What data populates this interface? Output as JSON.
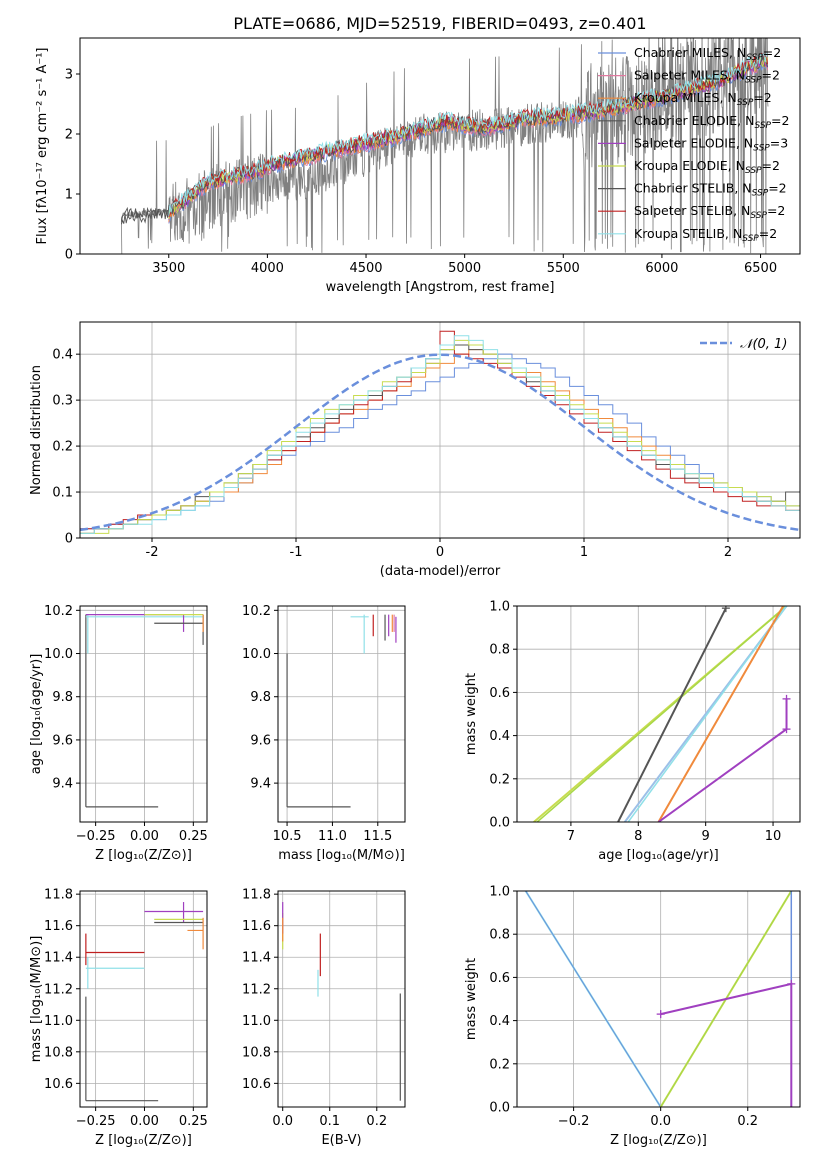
{
  "figure": {
    "title": "PLATE=0686, MJD=52519, FIBERID=0493, z=0.401"
  },
  "colors": {
    "chabrier_miles": "#6a8fdc",
    "salpeter_miles": "#e07aa0",
    "kroupa_miles": "#f08a3c",
    "chabrier_elodie": "#555555",
    "salpeter_elodie": "#a040c0",
    "kroupa_elodie": "#c8dc50",
    "chabrier_stelib": "#555555",
    "salpeter_stelib": "#c02020",
    "kroupa_stelib": "#90e0e8",
    "data": "#808080",
    "normal": "#6a8fdc"
  },
  "legend_spectrum": [
    {
      "base": "Chabrier MILES, N",
      "sub": "SSP",
      "tail": "=2",
      "color": "#6a8fdc"
    },
    {
      "base": "Salpeter MILES, N",
      "sub": "SSP",
      "tail": "=2",
      "color": "#e07aa0"
    },
    {
      "base": "Kroupa MILES, N",
      "sub": "SSP",
      "tail": "=2",
      "color": "#f08a3c"
    },
    {
      "base": "Chabrier ELODIE, N",
      "sub": "SSP",
      "tail": "=2",
      "color": "#555555"
    },
    {
      "base": "Salpeter ELODIE, N",
      "sub": "SSP",
      "tail": "=3",
      "color": "#a040c0"
    },
    {
      "base": "Kroupa ELODIE, N",
      "sub": "SSP",
      "tail": "=2",
      "color": "#c8dc50"
    },
    {
      "base": "Chabrier STELIB, N",
      "sub": "SSP",
      "tail": "=2",
      "color": "#555555"
    },
    {
      "base": "Salpeter STELIB, N",
      "sub": "SSP",
      "tail": "=2",
      "color": "#c02020"
    },
    {
      "base": "Kroupa STELIB, N",
      "sub": "SSP",
      "tail": "=2",
      "color": "#90e0e8"
    }
  ],
  "chart_data": [
    {
      "id": "spectrum",
      "type": "line",
      "xlabel": "wavelength [Angstrom, rest frame]",
      "ylabel": "Flux [fλ10⁻¹⁷ erg cm⁻² s⁻¹ A⁻¹]",
      "xlim": [
        3050,
        6700
      ],
      "ylim": [
        0,
        3.6
      ],
      "xticks": [
        3500,
        4000,
        4500,
        5000,
        5500,
        6000,
        6500
      ],
      "yticks": [
        0,
        1,
        2,
        3
      ],
      "data_envelope": {
        "x": [
          3260,
          3500,
          3600,
          3800,
          4000,
          4200,
          4400,
          4600,
          4800,
          5000,
          5200,
          5400,
          5600,
          5800,
          6000,
          6200,
          6400,
          6540
        ],
        "y": [
          0.65,
          0.7,
          0.75,
          1.05,
          1.2,
          1.25,
          1.5,
          1.8,
          2.0,
          2.05,
          2.1,
          2.2,
          2.3,
          2.4,
          2.6,
          2.85,
          3.0,
          3.3
        ]
      },
      "model_envelope": {
        "x": [
          3260,
          3500,
          3700,
          3900,
          4100,
          4300,
          4500,
          4700,
          4900,
          5100,
          5300,
          5500,
          5700,
          5900,
          6100,
          6300,
          6500
        ],
        "y": [
          0.62,
          0.68,
          1.2,
          1.35,
          1.55,
          1.7,
          1.85,
          2.0,
          2.2,
          2.1,
          2.25,
          2.3,
          2.4,
          2.55,
          2.7,
          2.9,
          3.2
        ]
      }
    },
    {
      "id": "residuals",
      "type": "histogram",
      "xlabel": "(data-model)/error",
      "ylabel": "Normed distribution",
      "xlim": [
        -2.5,
        2.5
      ],
      "ylim": [
        0,
        0.47
      ],
      "xticks": [
        -2,
        -1,
        0,
        1,
        2
      ],
      "yticks": [
        0.0,
        0.1,
        0.2,
        0.3,
        0.4
      ],
      "legend": "𝒩(0, 1)",
      "bin_start": -2.5,
      "bin_width": 0.1,
      "series": [
        {
          "color": "#6a8fdc",
          "values": [
            0.02,
            0.02,
            0.03,
            0.03,
            0.04,
            0.04,
            0.05,
            0.06,
            0.07,
            0.08,
            0.1,
            0.12,
            0.15,
            0.17,
            0.18,
            0.2,
            0.21,
            0.23,
            0.24,
            0.26,
            0.28,
            0.29,
            0.31,
            0.32,
            0.34,
            0.35,
            0.37,
            0.38,
            0.39,
            0.4,
            0.39,
            0.38,
            0.37,
            0.35,
            0.33,
            0.31,
            0.29,
            0.27,
            0.25,
            0.22,
            0.2,
            0.18,
            0.16,
            0.14,
            0.12,
            0.11,
            0.1,
            0.09,
            0.08,
            0.07
          ]
        },
        {
          "color": "#f08a3c",
          "values": [
            0.01,
            0.02,
            0.02,
            0.03,
            0.04,
            0.05,
            0.06,
            0.07,
            0.08,
            0.09,
            0.1,
            0.12,
            0.14,
            0.16,
            0.19,
            0.21,
            0.23,
            0.25,
            0.27,
            0.28,
            0.3,
            0.32,
            0.33,
            0.35,
            0.37,
            0.38,
            0.4,
            0.41,
            0.4,
            0.39,
            0.37,
            0.36,
            0.34,
            0.32,
            0.3,
            0.28,
            0.26,
            0.24,
            0.22,
            0.2,
            0.18,
            0.16,
            0.14,
            0.13,
            0.11,
            0.1,
            0.09,
            0.08,
            0.07,
            0.06
          ]
        },
        {
          "color": "#c02020",
          "values": [
            0.02,
            0.02,
            0.03,
            0.04,
            0.05,
            0.05,
            0.06,
            0.07,
            0.08,
            0.1,
            0.11,
            0.13,
            0.15,
            0.17,
            0.19,
            0.21,
            0.23,
            0.25,
            0.27,
            0.29,
            0.3,
            0.32,
            0.34,
            0.36,
            0.38,
            0.45,
            0.4,
            0.39,
            0.38,
            0.37,
            0.35,
            0.33,
            0.31,
            0.29,
            0.27,
            0.25,
            0.23,
            0.21,
            0.19,
            0.17,
            0.15,
            0.13,
            0.12,
            0.11,
            0.1,
            0.09,
            0.08,
            0.07,
            0.07,
            0.06
          ]
        },
        {
          "color": "#555555",
          "values": [
            0.01,
            0.02,
            0.02,
            0.03,
            0.04,
            0.05,
            0.06,
            0.07,
            0.09,
            0.1,
            0.12,
            0.14,
            0.16,
            0.18,
            0.2,
            0.22,
            0.24,
            0.26,
            0.28,
            0.3,
            0.31,
            0.33,
            0.35,
            0.37,
            0.39,
            0.41,
            0.42,
            0.41,
            0.4,
            0.38,
            0.36,
            0.34,
            0.32,
            0.3,
            0.28,
            0.26,
            0.24,
            0.22,
            0.2,
            0.18,
            0.16,
            0.15,
            0.13,
            0.12,
            0.11,
            0.1,
            0.09,
            0.08,
            0.08,
            0.1
          ]
        },
        {
          "color": "#c8dc50",
          "values": [
            0.01,
            0.01,
            0.02,
            0.03,
            0.04,
            0.05,
            0.06,
            0.07,
            0.08,
            0.1,
            0.12,
            0.14,
            0.16,
            0.19,
            0.21,
            0.24,
            0.26,
            0.28,
            0.29,
            0.31,
            0.32,
            0.34,
            0.35,
            0.36,
            0.38,
            0.41,
            0.43,
            0.42,
            0.4,
            0.38,
            0.36,
            0.35,
            0.33,
            0.31,
            0.29,
            0.27,
            0.25,
            0.23,
            0.21,
            0.19,
            0.17,
            0.16,
            0.14,
            0.13,
            0.12,
            0.11,
            0.1,
            0.09,
            0.08,
            0.07
          ]
        },
        {
          "color": "#90e0e8",
          "values": [
            0.01,
            0.02,
            0.02,
            0.03,
            0.03,
            0.04,
            0.05,
            0.06,
            0.07,
            0.09,
            0.11,
            0.13,
            0.15,
            0.18,
            0.2,
            0.23,
            0.25,
            0.27,
            0.29,
            0.3,
            0.32,
            0.33,
            0.35,
            0.37,
            0.39,
            0.42,
            0.44,
            0.43,
            0.41,
            0.39,
            0.37,
            0.35,
            0.32,
            0.3,
            0.28,
            0.26,
            0.24,
            0.22,
            0.2,
            0.18,
            0.17,
            0.15,
            0.14,
            0.12,
            0.11,
            0.1,
            0.09,
            0.08,
            0.07,
            0.06
          ]
        }
      ]
    },
    {
      "id": "age_vs_Z",
      "type": "scatter",
      "xlabel": "Z [log₁₀(Z/Z⊙)]",
      "ylabel": "age  [log₁₀(age/yr)]",
      "xlim": [
        -0.33,
        0.32
      ],
      "ylim": [
        9.22,
        10.22
      ],
      "xticks": [
        -0.25,
        0.0,
        0.25
      ],
      "xticklabels": [
        "−0.25",
        "0.00",
        "0.25"
      ],
      "yticks": [
        9.4,
        9.6,
        9.8,
        10.0,
        10.2
      ],
      "yticklabels": [
        "9.4",
        "9.6",
        "9.8",
        "10.0",
        "10.2"
      ]
    },
    {
      "id": "age_vs_mass",
      "type": "scatter",
      "xlabel": "mass [log₁₀(M/M⊙)]",
      "ylabel": "",
      "xlim": [
        10.4,
        11.8
      ],
      "ylim": [
        9.22,
        10.22
      ],
      "xticks": [
        10.5,
        11.0,
        11.5
      ],
      "xticklabels": [
        "10.5",
        "11.0",
        "11.5"
      ],
      "yticks": [
        9.4,
        9.6,
        9.8,
        10.0,
        10.2
      ],
      "yticklabels": [
        "9.4",
        "9.6",
        "9.8",
        "10.0",
        "10.2"
      ]
    },
    {
      "id": "cum_age",
      "type": "line",
      "xlabel": "age  [log₁₀(age/yr)]",
      "ylabel": "mass weight",
      "xlim": [
        6.2,
        10.4
      ],
      "ylim": [
        0,
        1
      ],
      "xticks": [
        7,
        8,
        9,
        10
      ],
      "xticklabels": [
        "7",
        "8",
        "9",
        "10"
      ],
      "yticks": [
        0,
        0.2,
        0.4,
        0.6,
        0.8,
        1.0
      ],
      "yticklabels": [
        "0.0",
        "0.2",
        "0.4",
        "0.6",
        "0.8",
        "1.0"
      ]
    },
    {
      "id": "mass_vs_Z",
      "type": "scatter",
      "xlabel": "Z [log₁₀(Z/Z⊙)]",
      "ylabel": "mass [log₁₀(M/M⊙)]",
      "xlim": [
        -0.33,
        0.32
      ],
      "ylim": [
        10.45,
        11.82
      ],
      "xticks": [
        -0.25,
        0.0,
        0.25
      ],
      "xticklabels": [
        "−0.25",
        "0.00",
        "0.25"
      ],
      "yticks": [
        10.6,
        10.8,
        11.0,
        11.2,
        11.4,
        11.6,
        11.8
      ],
      "yticklabels": [
        "10.6",
        "10.8",
        "11.0",
        "11.2",
        "11.4",
        "11.6",
        "11.8"
      ]
    },
    {
      "id": "mass_vs_ebv",
      "type": "scatter",
      "xlabel": "E(B-V)",
      "ylabel": "",
      "xlim": [
        -0.01,
        0.26
      ],
      "ylim": [
        10.45,
        11.82
      ],
      "xticks": [
        0.0,
        0.1,
        0.2
      ],
      "xticklabels": [
        "0.0",
        "0.1",
        "0.2"
      ],
      "yticks": [
        10.6,
        10.8,
        11.0,
        11.2,
        11.4,
        11.6,
        11.8
      ],
      "yticklabels": [
        "10.6",
        "10.8",
        "11.0",
        "11.2",
        "11.4",
        "11.6",
        "11.8"
      ]
    },
    {
      "id": "cum_Z",
      "type": "line",
      "xlabel": "Z [log₁₀(Z/Z⊙)]",
      "ylabel": "mass weight",
      "xlim": [
        -0.33,
        0.32
      ],
      "ylim": [
        0,
        1
      ],
      "xticks": [
        -0.2,
        0.0,
        0.2
      ],
      "xticklabels": [
        "−0.2",
        "0.0",
        "0.2"
      ],
      "yticks": [
        0,
        0.2,
        0.4,
        0.6,
        0.8,
        1.0
      ],
      "yticklabels": [
        "0.0",
        "0.2",
        "0.4",
        "0.6",
        "0.8",
        "1.0"
      ]
    }
  ]
}
